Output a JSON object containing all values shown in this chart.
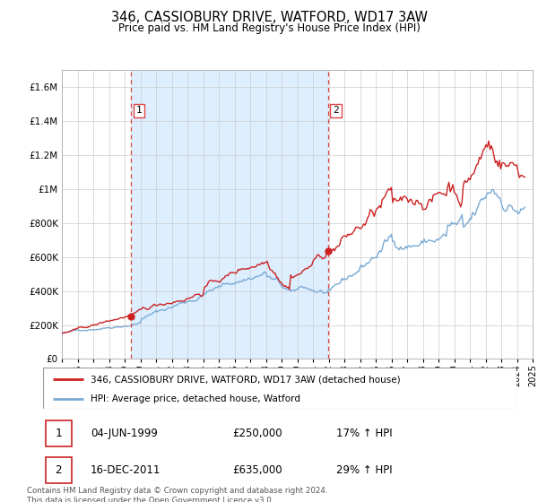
{
  "title": "346, CASSIOBURY DRIVE, WATFORD, WD17 3AW",
  "subtitle": "Price paid vs. HM Land Registry's House Price Index (HPI)",
  "legend_line1": "346, CASSIOBURY DRIVE, WATFORD, WD17 3AW (detached house)",
  "legend_line2": "HPI: Average price, detached house, Watford",
  "note1_date": "04-JUN-1999",
  "note1_price": "£250,000",
  "note1_hpi": "17% ↑ HPI",
  "note2_date": "16-DEC-2011",
  "note2_price": "£635,000",
  "note2_hpi": "29% ↑ HPI",
  "footer": "Contains HM Land Registry data © Crown copyright and database right 2024.\nThis data is licensed under the Open Government Licence v3.0.",
  "hpi_color": "#7aaad4",
  "price_color": "#cc2222",
  "vline_color": "#dd4444",
  "shade_color": "#ddeeff",
  "ylim": [
    0,
    1700000
  ],
  "yticks": [
    0,
    200000,
    400000,
    600000,
    800000,
    1000000,
    1200000,
    1400000,
    1600000
  ],
  "ytick_labels": [
    "£0",
    "£200K",
    "£400K",
    "£600K",
    "£800K",
    "£1M",
    "£1.2M",
    "£1.4M",
    "£1.6M"
  ],
  "sale1_year": 1999.42,
  "sale1_price": 250000,
  "sale2_year": 2011.96,
  "sale2_price": 635000,
  "xmin": 1995,
  "xmax": 2025,
  "background_color": "#ffffff",
  "grid_color": "#cccccc"
}
